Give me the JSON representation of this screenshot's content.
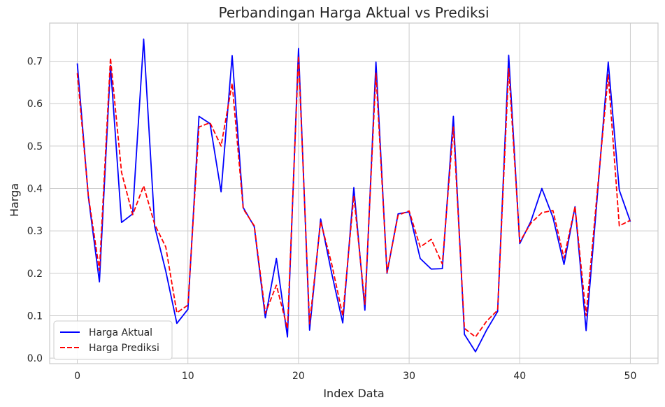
{
  "chart_data": {
    "type": "line",
    "title": "Perbandingan Harga Aktual vs Prediksi",
    "xlabel": "Index Data",
    "ylabel": "Harga",
    "xlim": [
      -2.5,
      52.5
    ],
    "ylim": [
      -0.013,
      0.79
    ],
    "xticks": [
      0,
      10,
      20,
      30,
      40,
      50
    ],
    "yticks": [
      0.0,
      0.1,
      0.2,
      0.3,
      0.4,
      0.5,
      0.6,
      0.7
    ],
    "ytick_labels": [
      "0.0",
      "0.1",
      "0.2",
      "0.3",
      "0.4",
      "0.5",
      "0.6",
      "0.7"
    ],
    "grid": true,
    "legend_position": "lower-left",
    "series": [
      {
        "name": "Harga Aktual",
        "color": "#0000ff",
        "style": "solid",
        "values": [
          0.695,
          0.38,
          0.18,
          0.69,
          0.32,
          0.34,
          0.752,
          0.31,
          0.205,
          0.082,
          0.115,
          0.57,
          0.553,
          0.392,
          0.713,
          0.355,
          0.31,
          0.095,
          0.235,
          0.05,
          0.73,
          0.066,
          0.328,
          0.2,
          0.083,
          0.402,
          0.113,
          0.698,
          0.2,
          0.34,
          0.345,
          0.235,
          0.21,
          0.211,
          0.57,
          0.056,
          0.015,
          0.066,
          0.11,
          0.714,
          0.27,
          0.322,
          0.4,
          0.332,
          0.221,
          0.357,
          0.065,
          0.378,
          0.698,
          0.396,
          0.322
        ]
      },
      {
        "name": "Harga Prediksi",
        "color": "#ff0000",
        "style": "dashed",
        "values": [
          0.672,
          0.383,
          0.207,
          0.708,
          0.438,
          0.338,
          0.406,
          0.315,
          0.262,
          0.107,
          0.125,
          0.545,
          0.555,
          0.5,
          0.648,
          0.352,
          0.312,
          0.106,
          0.172,
          0.07,
          0.712,
          0.081,
          0.322,
          0.222,
          0.1,
          0.383,
          0.127,
          0.672,
          0.202,
          0.337,
          0.347,
          0.262,
          0.28,
          0.222,
          0.545,
          0.07,
          0.05,
          0.087,
          0.113,
          0.683,
          0.274,
          0.318,
          0.343,
          0.348,
          0.236,
          0.357,
          0.1,
          0.39,
          0.668,
          0.312,
          0.325
        ]
      }
    ]
  }
}
